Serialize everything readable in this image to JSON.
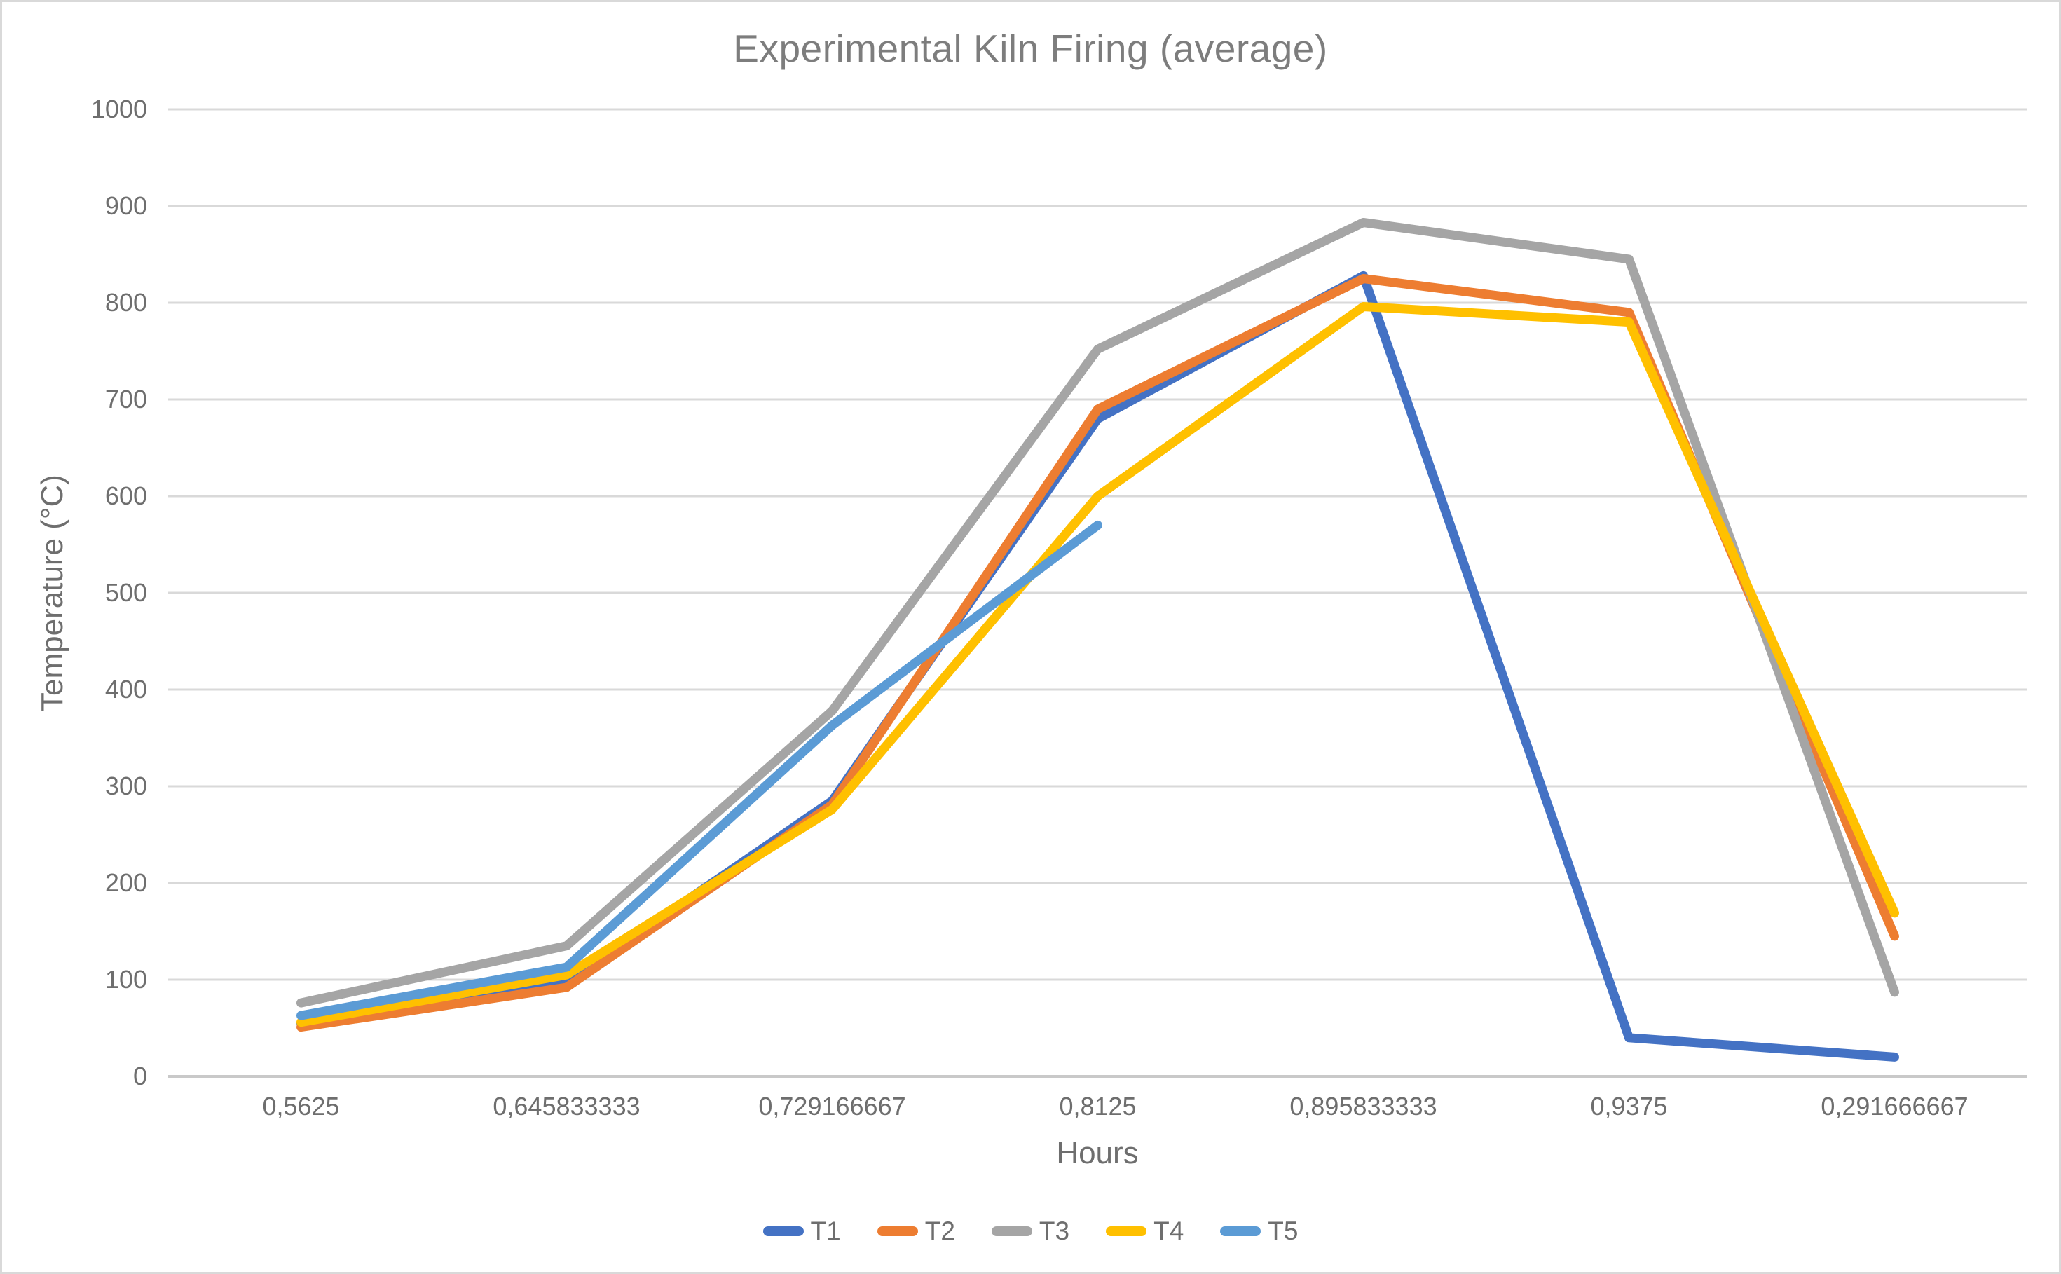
{
  "chart_data": {
    "type": "line",
    "title": "Experimental Kiln Firing (average)",
    "xlabel": "Hours",
    "ylabel": "Temperature (°C)",
    "categories": [
      "0,5625",
      "0,645833333",
      "0,729166667",
      "0,8125",
      "0,895833333",
      "0,9375",
      "0,291666667"
    ],
    "series": [
      {
        "name": "T1",
        "color": "#4472C4",
        "values": [
          55,
          97,
          285,
          680,
          828,
          40,
          20
        ]
      },
      {
        "name": "T2",
        "color": "#ED7D31",
        "values": [
          51,
          92,
          281,
          690,
          825,
          790,
          145
        ]
      },
      {
        "name": "T3",
        "color": "#A5A5A5",
        "values": [
          76,
          135,
          378,
          752,
          883,
          845,
          87
        ]
      },
      {
        "name": "T4",
        "color": "#FFC000",
        "values": [
          56,
          105,
          276,
          600,
          796,
          780,
          169
        ]
      },
      {
        "name": "T5",
        "color": "#5B9BD5",
        "values": [
          63,
          113,
          363,
          570,
          null,
          null,
          null
        ]
      }
    ],
    "ylim": [
      0,
      1000
    ],
    "ytick_step": 100,
    "grid": true,
    "legend_position": "bottom"
  }
}
